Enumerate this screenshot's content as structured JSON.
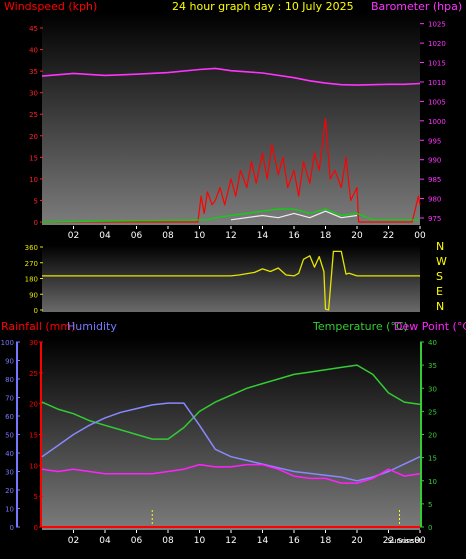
{
  "chart_data": [
    {
      "type": "line",
      "title": "24 hour graph day : 10 July 2025",
      "ylabel_left": "Windspeed (kph)",
      "ylabel_right": "Barometer (hpa)",
      "x_ticks": [
        "02",
        "04",
        "06",
        "08",
        "10",
        "12",
        "14",
        "16",
        "18",
        "20",
        "22",
        "00"
      ],
      "y_left_ticks": [
        0,
        5,
        10,
        15,
        20,
        25,
        30,
        35,
        40,
        45
      ],
      "y_left_range": [
        0,
        45
      ],
      "y_right_ticks": [
        975,
        980,
        985,
        990,
        995,
        1000,
        1005,
        1010,
        1015,
        1020,
        1025
      ],
      "y_right_range": [
        975,
        1028
      ],
      "grid": false,
      "series": [
        {
          "axis": "right",
          "color": "#ff33ff",
          "x": [
            0,
            2,
            4,
            6,
            8,
            10,
            11,
            12,
            14,
            16,
            17,
            18,
            19,
            20,
            21,
            22,
            23,
            24
          ],
          "values": [
            1011.5,
            1012.2,
            1011.7,
            1012.0,
            1012.4,
            1013.2,
            1013.5,
            1012.9,
            1012.3,
            1011.1,
            1010.3,
            1009.7,
            1009.3,
            1009.2,
            1009.3,
            1009.4,
            1009.4,
            1009.6
          ]
        },
        {
          "axis": "left",
          "color": "#ff0000",
          "x": [
            0,
            9.9,
            10.1,
            10.3,
            10.5,
            10.8,
            11.0,
            11.3,
            11.6,
            12.0,
            12.3,
            12.6,
            13.0,
            13.3,
            13.6,
            14.0,
            14.3,
            14.6,
            15.0,
            15.3,
            15.6,
            16.0,
            16.3,
            16.6,
            17.0,
            17.3,
            17.6,
            18.0,
            18.3,
            18.6,
            19.0,
            19.3,
            19.6,
            20.0,
            20.1,
            23.5,
            23.7,
            23.9,
            24
          ],
          "values": [
            0,
            0,
            6,
            2,
            7,
            4,
            5,
            8,
            4,
            10,
            6,
            12,
            8,
            14,
            9,
            16,
            10,
            18,
            11,
            15,
            8,
            12,
            6,
            14,
            9,
            16,
            12,
            24,
            10,
            12,
            8,
            15,
            5,
            8,
            0,
            0,
            3,
            6,
            4
          ]
        },
        {
          "axis": "left",
          "color": "#00dd00",
          "x": [
            0,
            10.5,
            11,
            12,
            13,
            14,
            15,
            16,
            17,
            18,
            19,
            20,
            21,
            24
          ],
          "values": [
            0,
            0.5,
            1,
            1.5,
            2,
            2.5,
            3,
            3,
            2,
            3,
            1.5,
            2,
            0.5,
            0.5
          ]
        },
        {
          "axis": "left",
          "color": "#eeeeee",
          "x": [
            12,
            14,
            15,
            16,
            17,
            18,
            19,
            20
          ],
          "values": [
            0.5,
            1.5,
            1,
            2,
            1,
            2.5,
            1,
            1.5
          ]
        }
      ]
    },
    {
      "type": "line",
      "ylabel_right": [
        "N",
        "W",
        "S",
        "E",
        "N"
      ],
      "y_left_ticks": [
        0,
        90,
        180,
        270,
        360
      ],
      "y_left_range": [
        0,
        360
      ],
      "grid": false,
      "series": [
        {
          "color": "#e5e500",
          "x": [
            0,
            12,
            12.5,
            13.5,
            14,
            14.5,
            15,
            15.5,
            16,
            16.3,
            16.6,
            17,
            17.3,
            17.6,
            17.9,
            18.0,
            18.2,
            18.5,
            19.0,
            19.3,
            19.5,
            20,
            22,
            24
          ],
          "values": [
            195,
            195,
            200,
            215,
            235,
            220,
            240,
            200,
            195,
            210,
            290,
            310,
            245,
            305,
            220,
            5,
            0,
            335,
            335,
            205,
            210,
            195,
            195,
            195
          ]
        }
      ]
    },
    {
      "type": "line",
      "ylabel_left": "Rainfall (mm)",
      "ylabel_left2": "Humidity",
      "ylabel_right": "Temperature (°C)",
      "ylabel_right2": "Dew Point (°C)",
      "x_ticks": [
        "02",
        "04",
        "06",
        "08",
        "10",
        "12",
        "14",
        "16",
        "18",
        "20",
        "22",
        "00"
      ],
      "x_markers": [
        "Sunrise",
        "Sunset"
      ],
      "x_marker_positions": [
        7.0,
        22.7
      ],
      "y_humidity_ticks": [
        0,
        10,
        20,
        30,
        40,
        50,
        60,
        70,
        80,
        90,
        100
      ],
      "y_rain_ticks": [
        0,
        5,
        10,
        15,
        20,
        25,
        30
      ],
      "y_rain_range": [
        0,
        30
      ],
      "y_temp_ticks": [
        0,
        5,
        10,
        15,
        20,
        25,
        30,
        35,
        40
      ],
      "y_temp_range": [
        0,
        40
      ],
      "grid": false,
      "series": [
        {
          "name": "Temperature (°C)",
          "axis": "temp",
          "color": "#33cc33",
          "x": [
            0,
            1,
            2,
            3,
            4,
            5,
            6,
            7,
            8,
            9,
            10,
            11,
            12,
            13,
            14,
            15,
            16,
            17,
            18,
            19,
            20,
            21,
            22,
            23,
            24
          ],
          "values": [
            27,
            25.5,
            24.5,
            23,
            22,
            21,
            20,
            19,
            19,
            21.5,
            25,
            27,
            28.5,
            30,
            31,
            32,
            33,
            33.5,
            34,
            34.5,
            35,
            33,
            29,
            27,
            26.5
          ]
        },
        {
          "name": "Humidity",
          "axis": "humidity",
          "color": "#8888ff",
          "x": [
            0,
            1,
            2,
            3,
            4,
            5,
            6,
            7,
            8,
            9,
            10,
            11,
            12,
            13,
            14,
            15,
            16,
            17,
            18,
            19,
            20,
            21,
            22,
            23,
            24
          ],
          "values": [
            38,
            44,
            50,
            55,
            59,
            62,
            64,
            66,
            67,
            67,
            55,
            42,
            38,
            36,
            34,
            32,
            30,
            29,
            28,
            27,
            25,
            27,
            30,
            34,
            38
          ]
        },
        {
          "name": "Dew Point (°C)",
          "axis": "temp",
          "color": "#ff22ff",
          "x": [
            0,
            1,
            2,
            3,
            4,
            5,
            6,
            7,
            8,
            9,
            10,
            11,
            12,
            13,
            14,
            15,
            16,
            17,
            18,
            19,
            20,
            21,
            22,
            23,
            24
          ],
          "values": [
            12.5,
            12,
            12.5,
            12,
            11.5,
            11.5,
            11.5,
            11.5,
            12,
            12.5,
            13.5,
            13,
            13,
            13.5,
            13.5,
            12.5,
            11,
            10.5,
            10.5,
            9.5,
            9.5,
            10.5,
            12.5,
            11,
            11.5
          ]
        },
        {
          "name": "Rainfall (mm)",
          "axis": "rain",
          "color": "#ff0000",
          "x": [
            0,
            24
          ],
          "values": [
            0,
            0
          ]
        }
      ]
    }
  ],
  "colors": {
    "background": "#000000",
    "wind_label": "#ff0000",
    "barometer_label": "#ff33ff",
    "title": "#ffff00",
    "axis_tick": "#ffffff",
    "rain_axis": "#ff0000",
    "humidity_axis": "#7777ff",
    "temp_axis": "#33cc33",
    "dew_axis": "#ff22ff",
    "marker": "#ffff00"
  }
}
